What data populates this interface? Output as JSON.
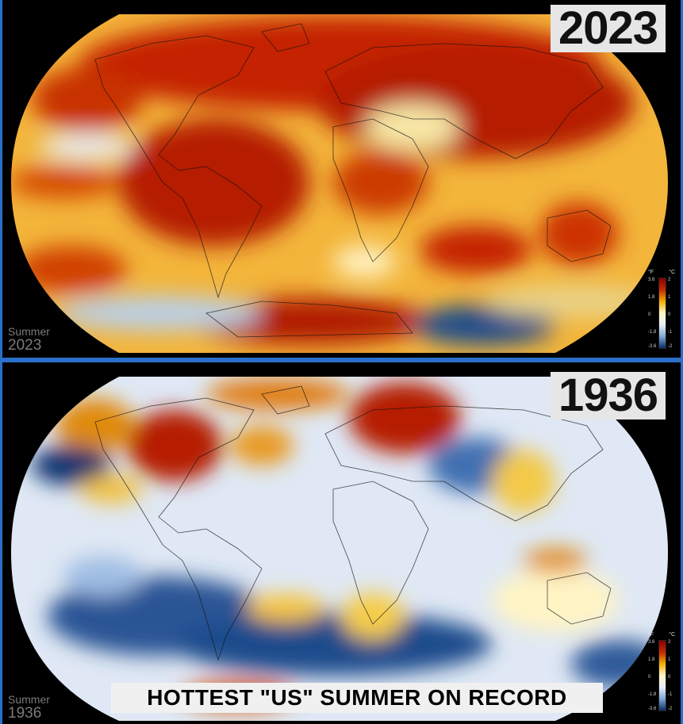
{
  "top_panel": {
    "year": "2023",
    "corner_label_line1": "Summer",
    "corner_label_line2": "2023",
    "legend": {
      "unit_f": "°F",
      "unit_c": "°C",
      "ticks_f": [
        "3.6",
        "1.8",
        "0",
        "-1.8",
        "-3.6"
      ],
      "ticks_c": [
        "2",
        "1",
        "0",
        "-1",
        "-2"
      ]
    }
  },
  "bottom_panel": {
    "year": "1936",
    "corner_label_line1": "Summer",
    "corner_label_line2": "1936",
    "legend": {
      "unit_f": "°F",
      "unit_c": "°C",
      "ticks_f": [
        "3.6",
        "1.8",
        "0",
        "-1.8",
        "-3.6"
      ],
      "ticks_c": [
        "2",
        "1",
        "0",
        "-1",
        "-2"
      ]
    }
  },
  "caption": "HOTTEST \"US\" SUMMER ON RECORD",
  "colors": {
    "frame": "#2a6fc9",
    "hot": "#b31b00",
    "warm": "#f2b100",
    "neutral": "#fff4cc",
    "cool": "#8fb3dd",
    "cold": "#0d3670"
  }
}
